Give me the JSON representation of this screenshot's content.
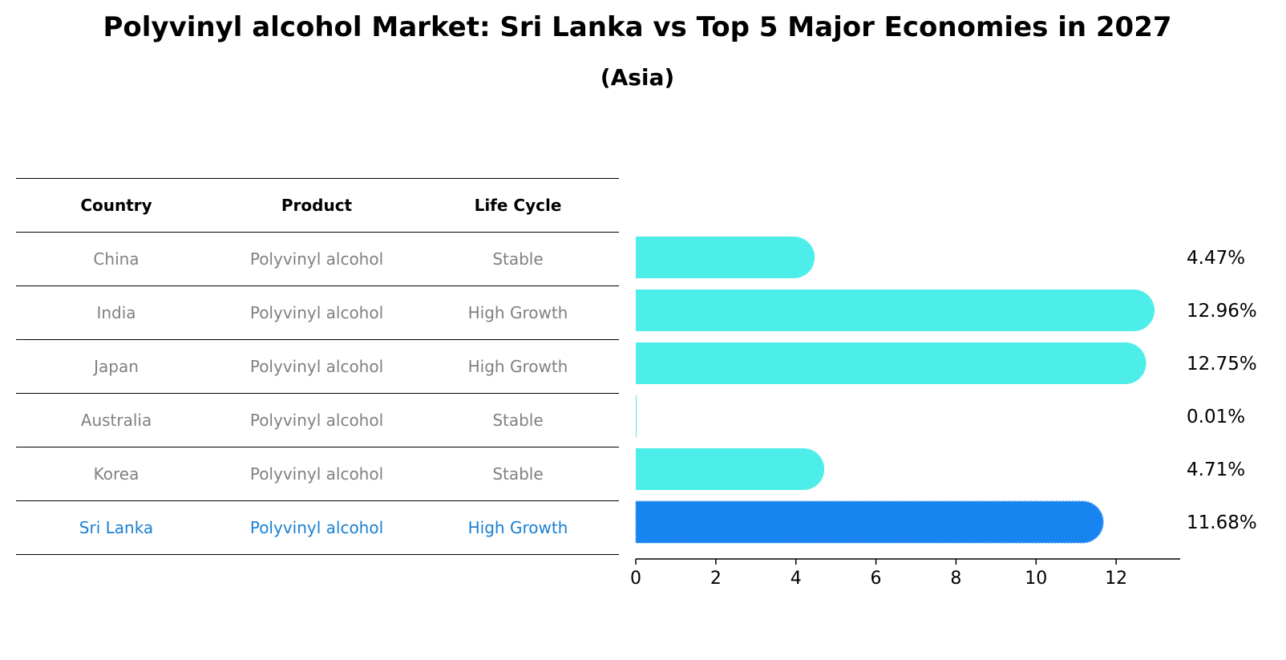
{
  "title": "Polyvinyl alcohol Market: Sri Lanka vs Top 5 Major Economies in 2027",
  "subtitle": "(Asia)",
  "table": {
    "headers": [
      "Country",
      "Product",
      "Life Cycle"
    ],
    "rows": [
      {
        "country": "China",
        "product": "Polyvinyl alcohol",
        "life_cycle": "Stable"
      },
      {
        "country": "India",
        "product": "Polyvinyl alcohol",
        "life_cycle": "High Growth"
      },
      {
        "country": "Japan",
        "product": "Polyvinyl alcohol",
        "life_cycle": "High Growth"
      },
      {
        "country": "Australia",
        "product": "Polyvinyl alcohol",
        "life_cycle": "Stable"
      },
      {
        "country": "Korea",
        "product": "Polyvinyl alcohol",
        "life_cycle": "Stable"
      },
      {
        "country": "Sri Lanka",
        "product": "Polyvinyl alcohol",
        "life_cycle": "High Growth"
      }
    ]
  },
  "colors": {
    "bar": "#4deee9",
    "highlight_bar": "#1784f0",
    "highlight_text": "#1a7fd4",
    "muted_text": "#808080"
  },
  "chart_data": {
    "type": "bar",
    "orientation": "horizontal",
    "title": "Polyvinyl alcohol Market: Sri Lanka vs Top 5 Major Economies in 2027",
    "subtitle": "(Asia)",
    "categories": [
      "China",
      "India",
      "Japan",
      "Australia",
      "Korea",
      "Sri Lanka"
    ],
    "values": [
      4.47,
      12.96,
      12.75,
      0.01,
      4.71,
      11.68
    ],
    "value_labels": [
      "4.47%",
      "12.96%",
      "12.75%",
      "0.01%",
      "4.71%",
      "11.68%"
    ],
    "highlight": "Sri Lanka",
    "xlim": [
      0,
      13.6
    ],
    "xticks": [
      0,
      2,
      4,
      6,
      8,
      10,
      12
    ],
    "xlabel": "",
    "ylabel": "",
    "grid": false
  }
}
